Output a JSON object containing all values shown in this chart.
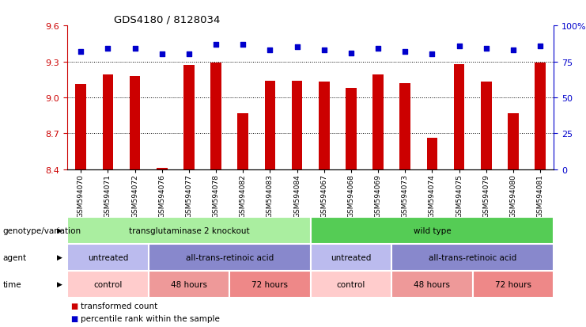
{
  "title": "GDS4180 / 8128034",
  "samples": [
    "GSM594070",
    "GSM594071",
    "GSM594072",
    "GSM594076",
    "GSM594077",
    "GSM594078",
    "GSM594082",
    "GSM594083",
    "GSM594084",
    "GSM594067",
    "GSM594068",
    "GSM594069",
    "GSM594073",
    "GSM594074",
    "GSM594075",
    "GSM594079",
    "GSM594080",
    "GSM594081"
  ],
  "bar_values": [
    9.11,
    9.19,
    9.18,
    8.41,
    9.27,
    9.29,
    8.87,
    9.14,
    9.14,
    9.13,
    9.08,
    9.19,
    9.12,
    8.66,
    9.28,
    9.13,
    8.87,
    9.29
  ],
  "dot_values": [
    82,
    84,
    84,
    80,
    80,
    87,
    87,
    83,
    85,
    83,
    81,
    84,
    82,
    80,
    86,
    84,
    83,
    86
  ],
  "ylim_left": [
    8.4,
    9.6
  ],
  "ylim_right": [
    0,
    100
  ],
  "yticks_left": [
    8.4,
    8.7,
    9.0,
    9.3,
    9.6
  ],
  "yticks_right": [
    0,
    25,
    50,
    75,
    100
  ],
  "ytick_right_labels": [
    "0",
    "25",
    "50",
    "75",
    "100%"
  ],
  "bar_color": "#cc0000",
  "dot_color": "#0000cc",
  "bg_color": "#ffffff",
  "plot_bg": "#f0f0f0",
  "genotype_row": [
    {
      "label": "transglutaminase 2 knockout",
      "start": 0,
      "end": 9,
      "color": "#aaeea0"
    },
    {
      "label": "wild type",
      "start": 9,
      "end": 18,
      "color": "#55cc55"
    }
  ],
  "agent_row": [
    {
      "label": "untreated",
      "start": 0,
      "end": 3,
      "color": "#bbbbee"
    },
    {
      "label": "all-trans-retinoic acid",
      "start": 3,
      "end": 9,
      "color": "#8888cc"
    },
    {
      "label": "untreated",
      "start": 9,
      "end": 12,
      "color": "#bbbbee"
    },
    {
      "label": "all-trans-retinoic acid",
      "start": 12,
      "end": 18,
      "color": "#8888cc"
    }
  ],
  "time_row": [
    {
      "label": "control",
      "start": 0,
      "end": 3,
      "color": "#ffcccc"
    },
    {
      "label": "48 hours",
      "start": 3,
      "end": 6,
      "color": "#ee9999"
    },
    {
      "label": "72 hours",
      "start": 6,
      "end": 9,
      "color": "#ee8888"
    },
    {
      "label": "control",
      "start": 9,
      "end": 12,
      "color": "#ffcccc"
    },
    {
      "label": "48 hours",
      "start": 12,
      "end": 15,
      "color": "#ee9999"
    },
    {
      "label": "72 hours",
      "start": 15,
      "end": 18,
      "color": "#ee8888"
    }
  ],
  "row_labels": [
    "genotype/variation",
    "agent",
    "time"
  ],
  "legend_items": [
    {
      "label": "transformed count",
      "color": "#cc0000"
    },
    {
      "label": "percentile rank within the sample",
      "color": "#0000cc"
    }
  ]
}
